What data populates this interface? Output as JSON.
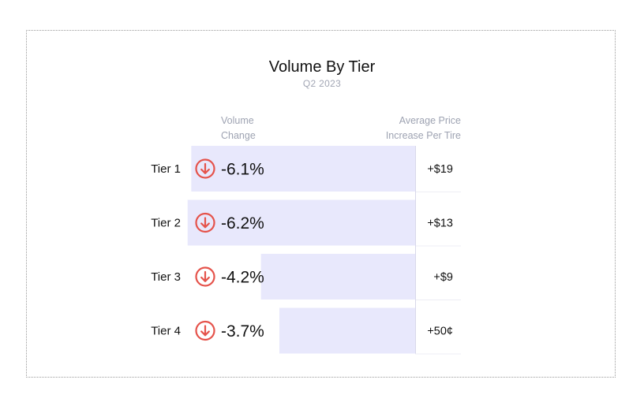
{
  "chart_data": {
    "type": "bar",
    "title": "Volume By Tier",
    "subtitle": "Q2 2023",
    "column_headers": {
      "volume_change": [
        "Volume",
        "Change"
      ],
      "avg_price_increase": [
        "Average Price",
        "Increase Per Tire"
      ]
    },
    "categories": [
      "Tier 1",
      "Tier 2",
      "Tier 3",
      "Tier 4"
    ],
    "series": [
      {
        "values": [
          -6.1,
          -6.2,
          -4.2,
          -3.7
        ]
      }
    ],
    "value_labels": [
      "-6.1%",
      "-6.2%",
      "-4.2%",
      "-3.7%"
    ],
    "price_increase_labels": [
      "+$19",
      "+$13",
      "+$9",
      "+50¢"
    ],
    "value_direction_icon": "arrow-down-circle-icon",
    "colors": {
      "bar": "#e8e8fc",
      "down_icon": "#e5534b",
      "divider": "#d8d8ea"
    }
  }
}
